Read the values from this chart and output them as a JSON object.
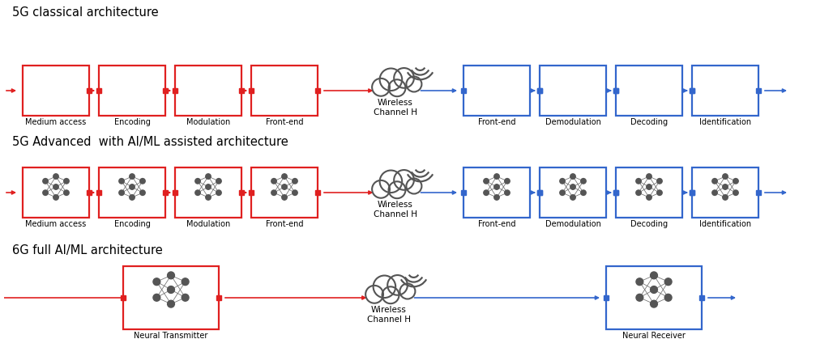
{
  "title_5g_classical": "5G classical architecture",
  "title_5g_advanced": "5G Advanced  with AI/ML assisted architecture",
  "title_6g": "6G full AI/ML architecture",
  "red_color": "#E02020",
  "blue_color": "#3366CC",
  "cloud_color": "#555555",
  "tx_labels_5g": [
    "Medium access",
    "Encoding",
    "Modulation",
    "Front-end"
  ],
  "rx_labels_5g": [
    "Front-end",
    "Demodulation",
    "Decoding",
    "Identification"
  ],
  "tx_label_6g": "Neural Transmitter",
  "rx_label_6g": "Neural Receiver",
  "cloud_label": "Wireless\nChannel H",
  "title_fontsize": 10.5,
  "label_fontsize": 7.0,
  "fig_w": 10.28,
  "fig_h": 4.4
}
